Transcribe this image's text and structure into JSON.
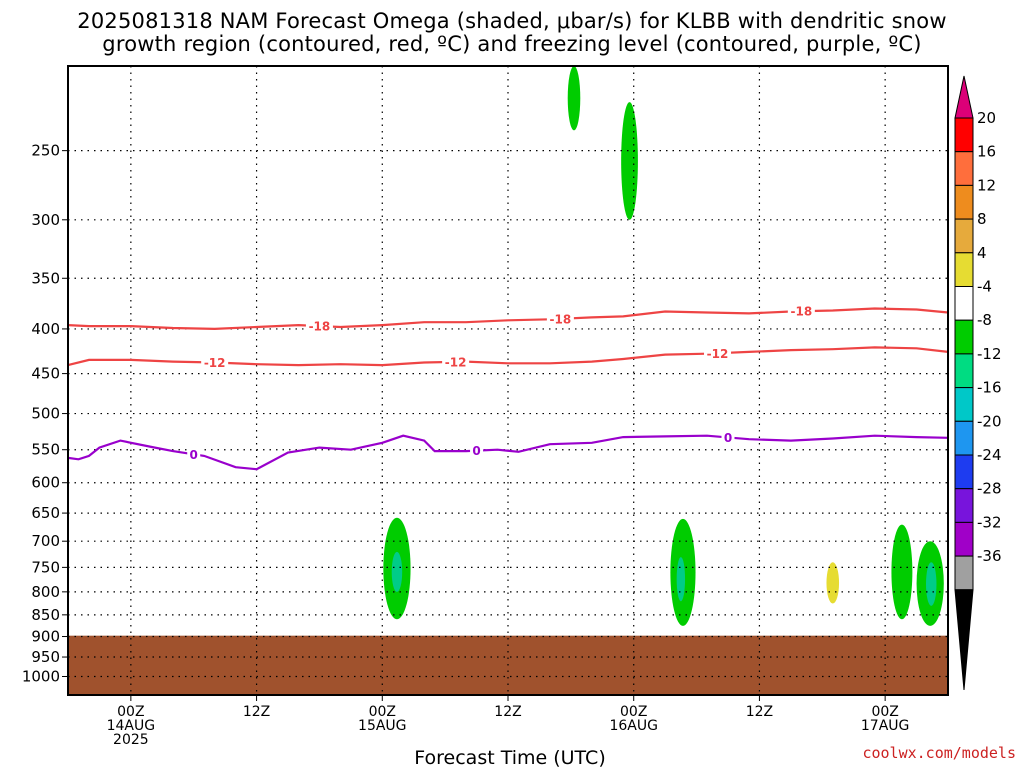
{
  "title_line1": "2025081318 NAM Forecast Omega (shaded, μbar/s) for KLBB with dendritic snow",
  "title_line2": "growth region (contoured, red, ºC) and freezing level (contoured, purple, ºC)",
  "credit": "coolwx.com/models",
  "colors": {
    "dgz": "#ee4444",
    "freezing": "#9900cc",
    "terrain": "#a0522d",
    "omega_neg4": "#00cc00",
    "omega_neg8": "#00cc88"
  },
  "chart_data": {
    "type": "heatmap",
    "title": "2025081318 NAM Forecast Omega (shaded, μbar/s) for KLBB with dendritic snow growth region (contoured, red, ºC) and freezing level (contoured, purple, ºC)",
    "xlabel": "Forecast Time (UTC)",
    "ylabel": "",
    "x_unit": "hours from 2025-08-13 18Z",
    "xlim": [
      0,
      84
    ],
    "ylim": [
      1050,
      200
    ],
    "y_scale": "log",
    "grid": true,
    "y_ticks": [
      250,
      300,
      350,
      400,
      450,
      500,
      550,
      600,
      650,
      700,
      750,
      800,
      850,
      900,
      950,
      1000
    ],
    "x_ticks": [
      {
        "x": 6,
        "label": "00Z",
        "sub1": "14AUG",
        "sub2": "2025"
      },
      {
        "x": 18,
        "label": "12Z",
        "sub1": "",
        "sub2": ""
      },
      {
        "x": 30,
        "label": "00Z",
        "sub1": "15AUG",
        "sub2": ""
      },
      {
        "x": 42,
        "label": "12Z",
        "sub1": "",
        "sub2": ""
      },
      {
        "x": 54,
        "label": "00Z",
        "sub1": "16AUG",
        "sub2": ""
      },
      {
        "x": 66,
        "label": "12Z",
        "sub1": "",
        "sub2": ""
      },
      {
        "x": 78,
        "label": "00Z",
        "sub1": "17AUG",
        "sub2": ""
      }
    ],
    "colorbar": {
      "labels": [
        "20",
        "16",
        "12",
        "8",
        "4",
        "-4",
        "-8",
        "-12",
        "-16",
        "-20",
        "-24",
        "-28",
        "-32",
        "-36"
      ],
      "colors": [
        "#ff0000",
        "#ff6e3c",
        "#ee8c1e",
        "#e6aa3c",
        "#e6dc32",
        "#ffffff",
        "#00cc00",
        "#00dc82",
        "#00c8c8",
        "#1e96f0",
        "#1e3cf0",
        "#7814dc",
        "#a000c8",
        "#a0a0a0"
      ],
      "top_color": "#dc0078",
      "bottom_color": "#000000"
    },
    "series": [
      {
        "name": "-18",
        "color": "#ee4444",
        "x": [
          0,
          2,
          6,
          10,
          14,
          18,
          22,
          26,
          30,
          34,
          38,
          42,
          46,
          50,
          53,
          57,
          61,
          65,
          69,
          73,
          77,
          81,
          84
        ],
        "y": [
          396,
          397,
          397,
          399,
          400,
          398,
          396,
          398,
          396,
          393,
          393,
          391,
          390,
          388,
          387,
          382,
          383,
          384,
          382,
          381,
          379,
          380,
          383
        ],
        "label_positions": [
          24,
          47,
          70
        ]
      },
      {
        "name": "-12",
        "color": "#ee4444",
        "x": [
          0,
          2,
          6,
          10,
          14,
          18,
          22,
          26,
          30,
          34,
          38,
          42,
          46,
          50,
          53,
          57,
          61,
          65,
          69,
          73,
          77,
          81,
          84
        ],
        "y": [
          440,
          434,
          434,
          436,
          437,
          439,
          440,
          439,
          440,
          437,
          436,
          438,
          438,
          436,
          433,
          428,
          427,
          425,
          423,
          422,
          420,
          421,
          425
        ],
        "label_positions": [
          14,
          37,
          62
        ]
      },
      {
        "name": "0",
        "color": "#9900cc",
        "x": [
          0,
          1,
          2,
          3,
          5,
          8,
          10,
          13,
          16,
          18,
          21,
          24,
          27,
          30,
          32,
          34,
          35,
          38,
          41,
          43,
          46,
          50,
          53,
          57,
          61,
          65,
          69,
          73,
          77,
          81,
          84
        ],
        "y": [
          562,
          564,
          559,
          547,
          537,
          546,
          552,
          559,
          576,
          579,
          554,
          547,
          550,
          540,
          530,
          537,
          552,
          552,
          550,
          553,
          542,
          540,
          532,
          531,
          530,
          535,
          537,
          534,
          530,
          532,
          533
        ],
        "label_positions": [
          12,
          39,
          63
        ]
      }
    ],
    "omega_regions": [
      {
        "value": -4,
        "color": "#00cc00",
        "x_center": 31.4,
        "x_width": 2.6,
        "p_top": 658,
        "p_bottom": 860
      },
      {
        "value": -8,
        "color": "#00cc88",
        "x_center": 31.4,
        "x_width": 1.0,
        "p_top": 720,
        "p_bottom": 800
      },
      {
        "value": -4,
        "color": "#00cc00",
        "x_center": 53.6,
        "x_width": 1.6,
        "p_top": 220,
        "p_bottom": 300
      },
      {
        "value": -4,
        "color": "#00cc00",
        "x_center": 48.3,
        "x_width": 1.2,
        "p_top": 200,
        "p_bottom": 237
      },
      {
        "value": -4,
        "color": "#00cc00",
        "x_center": 58.7,
        "x_width": 2.4,
        "p_top": 660,
        "p_bottom": 875
      },
      {
        "value": -8,
        "color": "#00cc88",
        "x_center": 58.5,
        "x_width": 0.8,
        "p_top": 730,
        "p_bottom": 820
      },
      {
        "value": 4,
        "color": "#e6dc32",
        "x_center": 73.0,
        "x_width": 1.2,
        "p_top": 740,
        "p_bottom": 825
      },
      {
        "value": -4,
        "color": "#00cc00",
        "x_center": 79.6,
        "x_width": 2.0,
        "p_top": 670,
        "p_bottom": 860
      },
      {
        "value": -4,
        "color": "#00cc00",
        "x_center": 82.3,
        "x_width": 2.6,
        "p_top": 700,
        "p_bottom": 875
      },
      {
        "value": -8,
        "color": "#00cc88",
        "x_center": 82.4,
        "x_width": 1.0,
        "p_top": 740,
        "p_bottom": 830
      }
    ],
    "terrain": {
      "color": "#a0522d",
      "surface_pressure": 898
    }
  }
}
